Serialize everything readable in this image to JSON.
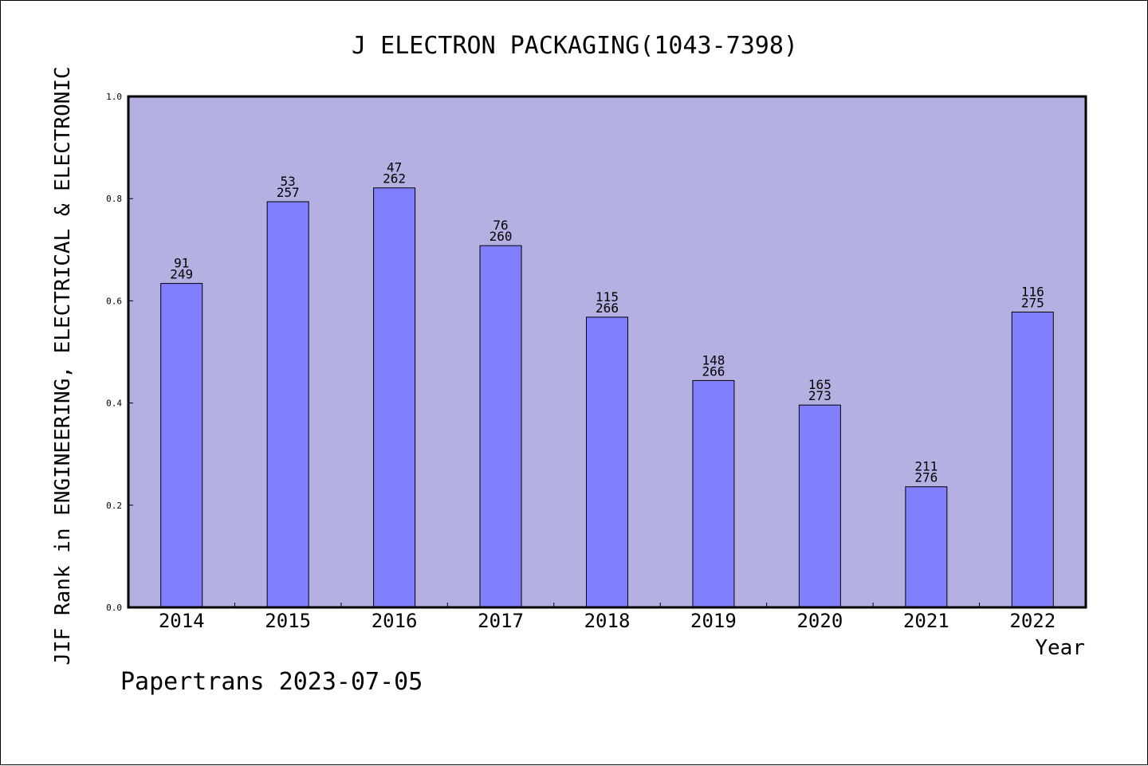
{
  "chart_data": {
    "type": "bar",
    "title": "J ELECTRON PACKAGING(1043-7398)",
    "xlabel": "Year",
    "ylabel": "JIF Rank in ENGINEERING, ELECTRICAL & ELECTRONIC",
    "ylim": [
      0,
      1.0
    ],
    "yticks": [
      "0.0",
      "0.2",
      "0.4",
      "0.6",
      "0.8",
      "1.0"
    ],
    "categories": [
      "2014",
      "2015",
      "2016",
      "2017",
      "2018",
      "2019",
      "2020",
      "2021",
      "2022"
    ],
    "values": [
      0.634,
      0.794,
      0.821,
      0.708,
      0.568,
      0.444,
      0.396,
      0.236,
      0.578
    ],
    "rank": [
      "91",
      "53",
      "47",
      "76",
      "115",
      "148",
      "165",
      "211",
      "116"
    ],
    "total": [
      "249",
      "257",
      "262",
      "260",
      "266",
      "266",
      "273",
      "276",
      "275"
    ],
    "grid": false,
    "colors": {
      "plot_background": "#b5b0e2",
      "bar_fill": "#8080ff",
      "bar_stroke": "#000000",
      "axis": "#000000"
    }
  },
  "footer": "Papertrans 2023-07-05"
}
